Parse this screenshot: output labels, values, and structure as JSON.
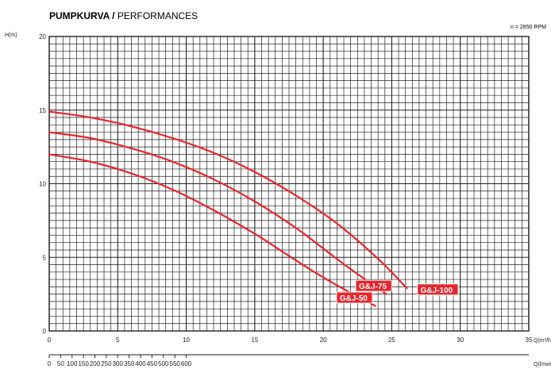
{
  "title": {
    "bold": "PUMPKURVA",
    "separator": " / ",
    "regular": "PERFORMANCES"
  },
  "rpm_label": "n = 2850 RPM",
  "colors": {
    "curve": "#e8262b",
    "grid": "#222222",
    "background": "#ffffff"
  },
  "chart_data": {
    "type": "line",
    "title": "PUMPKURVA / PERFORMANCES",
    "annotation": "n = 2850 RPM",
    "ylabel": "H(m)",
    "xlabel": "Q(m³/h)",
    "xlabel_secondary": "Q(l/min)",
    "xlim": [
      0,
      35
    ],
    "ylim": [
      0,
      20
    ],
    "grid": true,
    "x_ticks": [
      "0",
      "5",
      "10",
      "15",
      "20",
      "25",
      "30",
      "35"
    ],
    "y_ticks": [
      "0",
      "5",
      "10",
      "15",
      "20"
    ],
    "x2_ticks": [
      "0",
      "50",
      "100",
      "150",
      "200",
      "250",
      "300",
      "350",
      "400",
      "450",
      "500",
      "550",
      "600"
    ],
    "series": [
      {
        "name": "G&J-50",
        "x": [
          0,
          3,
          6,
          9,
          12,
          15,
          17,
          19,
          21,
          23.8
        ],
        "y": [
          12.0,
          11.5,
          10.7,
          9.6,
          8.2,
          6.6,
          5.4,
          4.2,
          3.1,
          1.7
        ]
      },
      {
        "name": "G&J-75",
        "x": [
          0,
          3,
          6,
          9,
          12,
          15,
          18,
          20,
          22,
          24.6
        ],
        "y": [
          13.5,
          13.1,
          12.4,
          11.5,
          10.3,
          8.8,
          7.0,
          5.6,
          4.2,
          2.5
        ]
      },
      {
        "name": "G&J-100",
        "x": [
          0,
          3,
          6,
          9,
          12,
          15,
          18,
          21,
          24,
          26.1
        ],
        "y": [
          14.9,
          14.5,
          13.9,
          13.1,
          12.1,
          10.8,
          9.2,
          7.3,
          4.9,
          2.9
        ]
      }
    ],
    "curve_labels": [
      "G&J-50",
      "G&J-75",
      "G&J-100"
    ]
  }
}
